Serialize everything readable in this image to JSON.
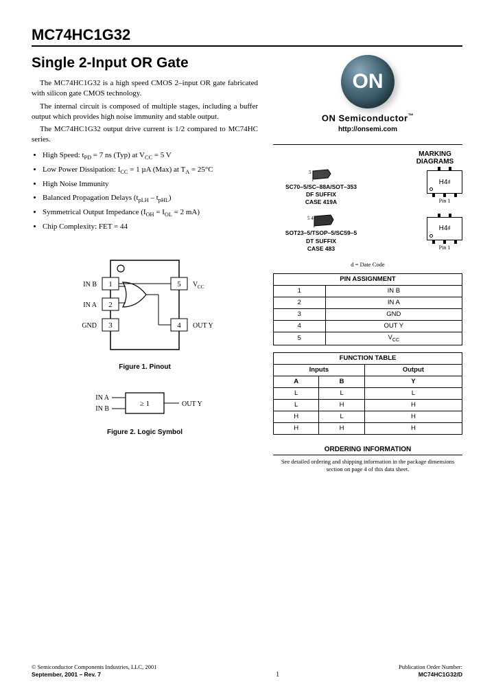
{
  "part_number": "MC74HC1G32",
  "title": "Single 2-Input OR Gate",
  "para1": "The MC74HC1G32 is a high speed CMOS 2–input OR gate fabricated with silicon gate CMOS technology.",
  "para2": "The internal circuit is composed of multiple stages, including a buffer output which provides high noise immunity and stable output.",
  "para3": "The MC74HC1G32 output drive current is 1/2 compared to MC74HC series.",
  "bullets": [
    "High Speed: t<sub>PD</sub> = 7 ns (Typ) at V<sub>CC</sub> = 5 V",
    "Low Power Dissipation: I<sub>CC</sub> = 1 µA (Max) at T<sub>A</sub> = 25°C",
    "High Noise Immunity",
    "Balanced Propagation Delays (t<sub>pLH</sub> – t<sub>pHL</sub>)",
    "Symmetrical Output Impedance (I<sub>OH</sub> = I<sub>OL</sub> = 2 mA)",
    "Chip Complexity: FET = 44"
  ],
  "brand": "ON Semiconductor",
  "brand_tm": "™",
  "url": "http://onsemi.com",
  "marking_diagrams_label": "MARKING DIAGRAMS",
  "packages": [
    {
      "pins_top": "5",
      "pins_bot": "1",
      "label1": "SC70–5/SC–88A/SOT–353",
      "label2": "DF SUFFIX",
      "label3": "CASE 419A",
      "mark": "H4",
      "mark_sup": "d"
    },
    {
      "pins_top": "5 4",
      "pins_bot": "1",
      "label1": "SOT23–5/TSOP–5/SC59–5",
      "label2": "DT SUFFIX",
      "label3": "CASE 483",
      "mark": "H4",
      "mark_sup": "d"
    }
  ],
  "pin1_label": "Pin 1",
  "datecode_note": "d = Date Code",
  "pin_assignment": {
    "title": "PIN ASSIGNMENT",
    "rows": [
      [
        "1",
        "IN B"
      ],
      [
        "2",
        "IN A"
      ],
      [
        "3",
        "GND"
      ],
      [
        "4",
        "OUT Y"
      ],
      [
        "5",
        "V<sub>CC</sub>"
      ]
    ]
  },
  "function_table": {
    "title": "FUNCTION TABLE",
    "headers_group": [
      "Inputs",
      "Output"
    ],
    "headers": [
      "A",
      "B",
      "Y"
    ],
    "rows": [
      [
        "L",
        "L",
        "L"
      ],
      [
        "L",
        "H",
        "H"
      ],
      [
        "H",
        "L",
        "H"
      ],
      [
        "H",
        "H",
        "H"
      ]
    ]
  },
  "ordering": {
    "title": "ORDERING INFORMATION",
    "text": "See detailed ordering and shipping information in the package dimensions section on page 4 of this data sheet."
  },
  "pinout": {
    "labels": {
      "in_b": "IN B",
      "in_a": "IN A",
      "gnd": "GND",
      "vcc": "V<sub>CC</sub>",
      "out_y": "OUT Y"
    },
    "pins": {
      "1": "1",
      "2": "2",
      "3": "3",
      "4": "4",
      "5": "5"
    },
    "caption": "Figure 1. Pinout"
  },
  "logic": {
    "in_a": "IN A",
    "in_b": "IN B",
    "out_y": "OUT Y",
    "symbol": "≥ 1",
    "caption": "Figure 2. Logic Symbol"
  },
  "footer": {
    "copyright": "© Semiconductor Components Industries, LLC, 2001",
    "date_rev": "September, 2001 – Rev. 7",
    "page": "1",
    "pub_label": "Publication Order Number:",
    "pub_num": "MC74HC1G32/D"
  },
  "colors": {
    "text": "#000",
    "bg": "#fff",
    "logo_grad_light": "#8aa8b8",
    "logo_grad_dark": "#2a4a58"
  }
}
